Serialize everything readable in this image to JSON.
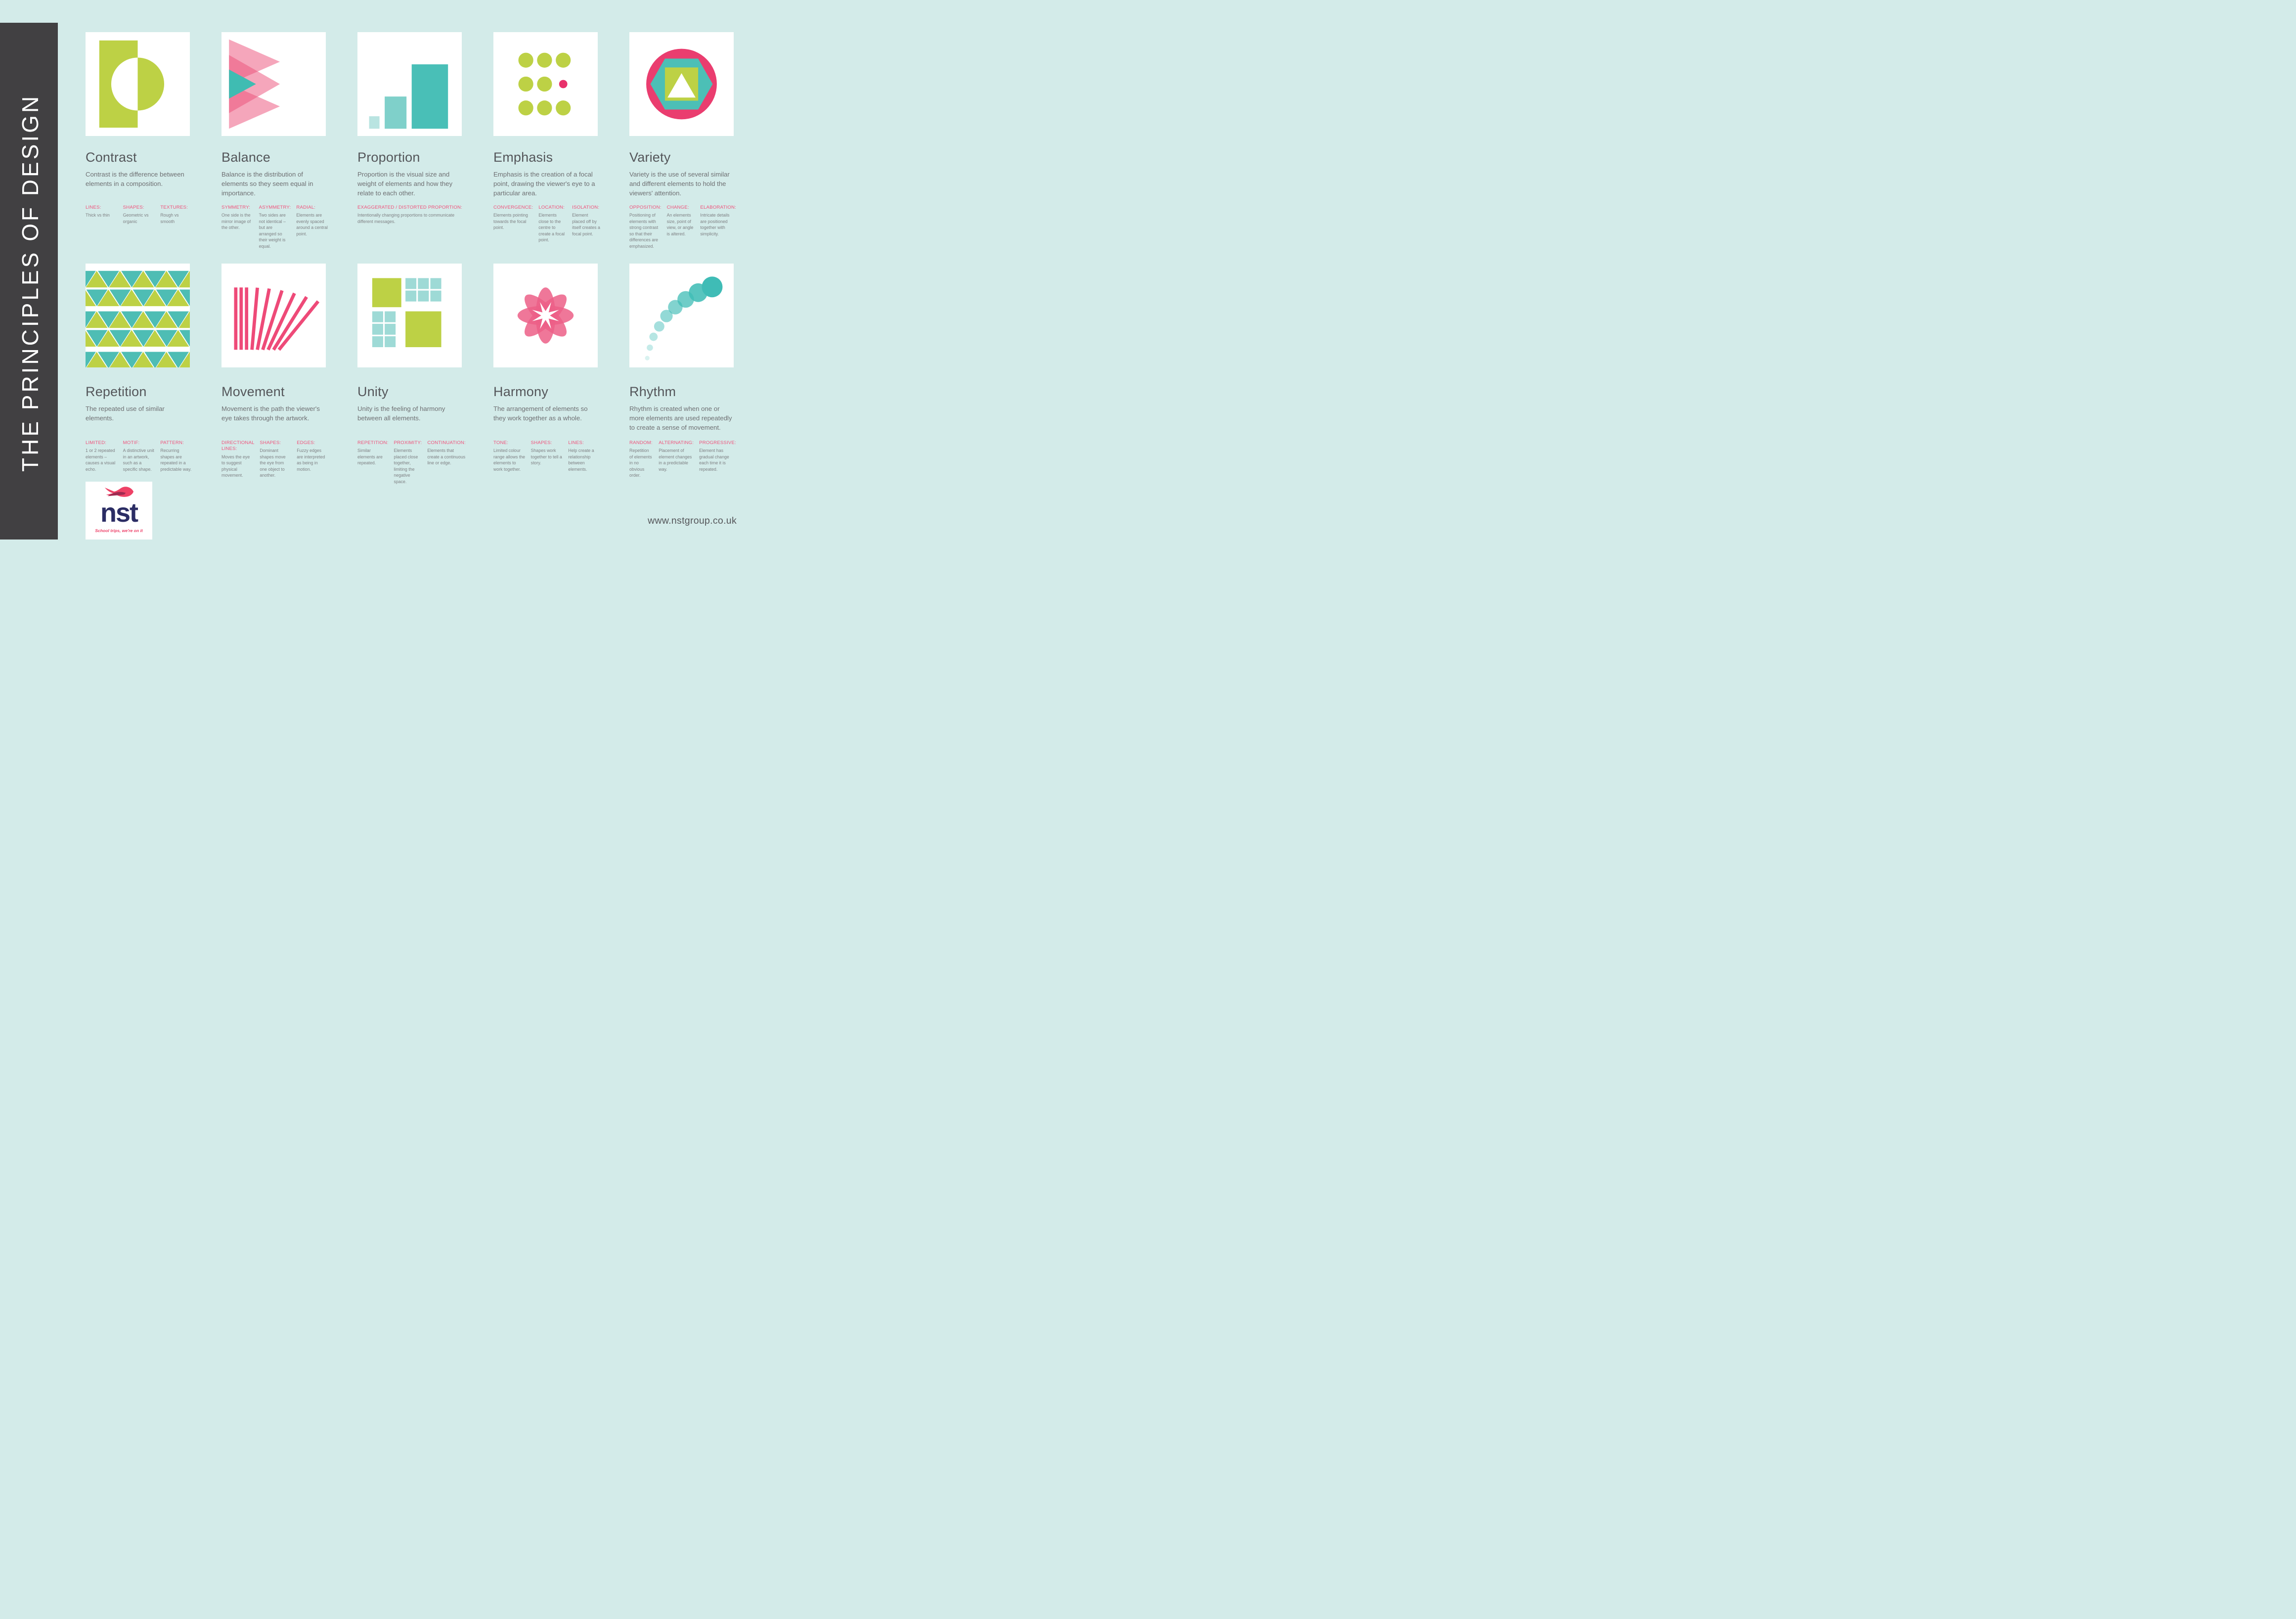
{
  "sidebar": {
    "title": "THE PRINCIPLES OF DESIGN"
  },
  "footer": {
    "website": "www.nstgroup.co.uk"
  },
  "logo": {
    "name": "nst",
    "tagline": "School trips, we're on it"
  },
  "palette": {
    "background": "#d3ebe9",
    "sidebar": "#414042",
    "card": "#ffffff",
    "green": "#bdd145",
    "teal": "#49bfb7",
    "teal_light": "#9edad6",
    "pink": "#ea3d6f",
    "pink_light": "#ec5f87",
    "label_pink": "#f0527b",
    "title_gray": "#54565a",
    "body_gray": "#6e6f72",
    "logo_navy": "#2b2d64"
  },
  "principles": [
    {
      "title": "Contrast",
      "description": "Contrast is the difference between elements in a composition.",
      "terms": [
        {
          "label": "LINES:",
          "text": "Thick vs thin"
        },
        {
          "label": "SHAPES:",
          "text": "Geometric vs organic"
        },
        {
          "label": "TEXTURES:",
          "text": "Rough vs smooth"
        }
      ]
    },
    {
      "title": "Balance",
      "description": "Balance is the distribution of elements so they seem equal in importance.",
      "terms": [
        {
          "label": "SYMMETRY:",
          "text": "One side is the mirror image of the other."
        },
        {
          "label": "ASYMMETRY:",
          "text": "Two sides are not identical – but are arranged so their weight is equal."
        },
        {
          "label": "RADIAL:",
          "text": "Elements are evenly spaced around a central point."
        }
      ]
    },
    {
      "title": "Proportion",
      "description": "Proportion is the visual size and weight of elements and how they relate to each other.",
      "terms": [
        {
          "label": "EXAGGERATED / DISTORTED PROPORTION:",
          "text": "Intentionally changing proportions to communicate different messages."
        }
      ]
    },
    {
      "title": "Emphasis",
      "description": "Emphasis is the creation of a focal point, drawing the viewer's eye to a particular area.",
      "terms": [
        {
          "label": "CONVERGENCE:",
          "text": "Elements pointing towards the focal point."
        },
        {
          "label": "LOCATION:",
          "text": "Elements close to the centre to create a focal point."
        },
        {
          "label": "ISOLATION:",
          "text": "Element placed off by itself creates a focal point."
        }
      ]
    },
    {
      "title": "Variety",
      "description": "Variety is the use of several similar and different elements to hold the viewers' attention.",
      "terms": [
        {
          "label": "OPPOSITION:",
          "text": "Positioning of elements with strong contrast so that their differences are emphasized."
        },
        {
          "label": "CHANGE:",
          "text": "An elements size, point of view, or angle is altered."
        },
        {
          "label": "ELABORATION:",
          "text": "Intricate details are positioned together with simplicity."
        }
      ]
    },
    {
      "title": "Repetition",
      "description": "The repeated use of similar elements.",
      "terms": [
        {
          "label": "LIMITED:",
          "text": "1 or 2 repeated elements – causes a visual echo."
        },
        {
          "label": "MOTIF:",
          "text": "A distinctive unit in an artwork, such as a specific shape."
        },
        {
          "label": "PATTERN:",
          "text": "Recurring shapes are repeated in a predictable way."
        }
      ]
    },
    {
      "title": "Movement",
      "description": "Movement is the path the viewer's eye takes through the artwork.",
      "terms": [
        {
          "label": "DIRECTIONAL LINES:",
          "text": "Moves the eye to suggest physical movement."
        },
        {
          "label": "SHAPES:",
          "text": "Dominant shapes move the eye from one object to another."
        },
        {
          "label": "EDGES:",
          "text": "Fuzzy edges are interpreted as being in motion."
        }
      ]
    },
    {
      "title": "Unity",
      "description": "Unity is the feeling of harmony between all elements.",
      "terms": [
        {
          "label": "REPETITION:",
          "text": "Similar elements are repeated."
        },
        {
          "label": "PROXIMITY:",
          "text": "Elements placed close together, limiting the negative space."
        },
        {
          "label": "CONTINUATION:",
          "text": "Elements that create a continuous line or edge."
        }
      ]
    },
    {
      "title": "Harmony",
      "description": "The arrangement of elements so they work together as a whole.",
      "terms": [
        {
          "label": "TONE:",
          "text": "Limited colour range allows the elements to work together."
        },
        {
          "label": "SHAPES:",
          "text": "Shapes work together to tell a story."
        },
        {
          "label": "LINES:",
          "text": "Help create a relationship between elements."
        }
      ]
    },
    {
      "title": "Rhythm",
      "description": "Rhythm is created when one or more elements are used repeatedly to create a sense of movement.",
      "terms": [
        {
          "label": "RANDOM:",
          "text": "Repetition of elements in no obvious order."
        },
        {
          "label": "ALTERNATING:",
          "text": "Placement of element changes in a predictable way."
        },
        {
          "label": "PROGRESSIVE:",
          "text": "Element has gradual change each time it is repeated."
        }
      ]
    }
  ]
}
